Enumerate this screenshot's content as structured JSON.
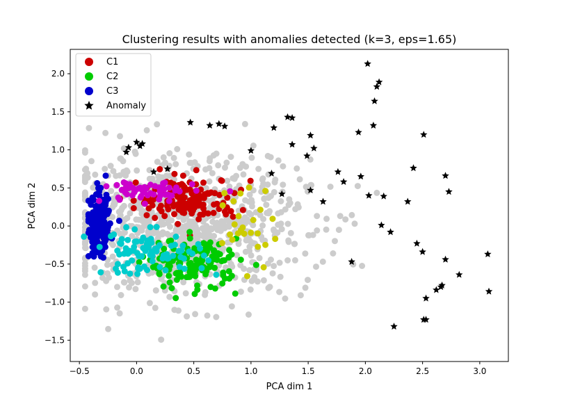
{
  "chart_data": {
    "type": "scatter",
    "title": "Clustering results with anomalies detected (k=3, eps=1.65)",
    "xlabel": "PCA dim 1",
    "ylabel": "PCA dim 2",
    "xlim": [
      -0.58,
      3.25
    ],
    "ylim": [
      -1.78,
      2.32
    ],
    "xticks": [
      -0.5,
      0.0,
      0.5,
      1.0,
      1.5,
      2.0,
      2.5,
      3.0
    ],
    "xtick_labels": [
      "−0.5",
      "0.0",
      "0.5",
      "1.0",
      "1.5",
      "2.0",
      "2.5",
      "3.0"
    ],
    "yticks": [
      -1.5,
      -1.0,
      -0.5,
      0.0,
      0.5,
      1.0,
      1.5,
      2.0
    ],
    "ytick_labels": [
      "−1.5",
      "−1.0",
      "−0.5",
      "0.0",
      "0.5",
      "1.0",
      "1.5",
      "2.0"
    ],
    "grid": false,
    "legend_position": "top-left",
    "legend": [
      {
        "label": "C1",
        "color": "#cc0000",
        "marker": "circle"
      },
      {
        "label": "C2",
        "color": "#00cc00",
        "marker": "circle"
      },
      {
        "label": "C3",
        "color": "#0000cc",
        "marker": "circle"
      },
      {
        "label": "Anomaly",
        "color": "#000000",
        "marker": "star"
      }
    ],
    "clusters": [
      {
        "name": "C1",
        "color": "#cc0000",
        "center": [
          0.45,
          0.35
        ],
        "spread": [
          0.22,
          0.14
        ],
        "n": 140
      },
      {
        "name": "C2",
        "color": "#00cc00",
        "center": [
          0.5,
          -0.5
        ],
        "spread": [
          0.2,
          0.16
        ],
        "n": 140
      },
      {
        "name": "C3",
        "color": "#0000cc",
        "center": [
          -0.33,
          0.0
        ],
        "spread": [
          0.05,
          0.2
        ],
        "n": 180
      },
      {
        "name": "magenta",
        "color": "#cc00cc",
        "center": [
          0.1,
          0.45
        ],
        "spread": [
          0.2,
          0.07
        ],
        "n": 60
      },
      {
        "name": "cyan",
        "color": "#00cccc",
        "center": [
          0.1,
          -0.35
        ],
        "spread": [
          0.25,
          0.14
        ],
        "n": 90
      },
      {
        "name": "yellow",
        "color": "#cccc00",
        "center": [
          0.95,
          0.0
        ],
        "spread": [
          0.12,
          0.3
        ],
        "n": 25
      }
    ],
    "background": {
      "color": "#cccccc",
      "center": [
        0.4,
        0.0
      ],
      "spread": [
        0.55,
        0.45
      ],
      "n": 900
    },
    "anomaly_color": "#000000",
    "anomalies": [
      [
        2.02,
        2.13
      ],
      [
        2.12,
        1.89
      ],
      [
        2.1,
        1.83
      ],
      [
        2.08,
        1.64
      ],
      [
        2.07,
        1.32
      ],
      [
        1.94,
        1.23
      ],
      [
        2.51,
        1.2
      ],
      [
        1.52,
        1.19
      ],
      [
        1.32,
        1.43
      ],
      [
        1.36,
        1.42
      ],
      [
        1.2,
        1.29
      ],
      [
        0.47,
        1.36
      ],
      [
        0.72,
        1.34
      ],
      [
        0.64,
        1.32
      ],
      [
        0.77,
        1.31
      ],
      [
        0.0,
        1.1
      ],
      [
        0.05,
        1.08
      ],
      [
        0.03,
        1.05
      ],
      [
        -0.07,
        1.03
      ],
      [
        -0.09,
        0.97
      ],
      [
        1.0,
        0.99
      ],
      [
        1.36,
        1.07
      ],
      [
        1.49,
        0.92
      ],
      [
        1.55,
        1.02
      ],
      [
        0.15,
        0.71
      ],
      [
        0.27,
        0.75
      ],
      [
        1.18,
        0.69
      ],
      [
        1.76,
        0.71
      ],
      [
        1.81,
        0.58
      ],
      [
        1.96,
        0.65
      ],
      [
        2.42,
        0.76
      ],
      [
        2.7,
        0.66
      ],
      [
        2.73,
        0.45
      ],
      [
        1.52,
        0.47
      ],
      [
        1.27,
        0.42
      ],
      [
        2.03,
        0.4
      ],
      [
        2.16,
        0.39
      ],
      [
        2.37,
        0.32
      ],
      [
        1.63,
        0.32
      ],
      [
        2.14,
        0.01
      ],
      [
        2.22,
        -0.08
      ],
      [
        2.45,
        -0.23
      ],
      [
        2.5,
        -0.34
      ],
      [
        2.7,
        -0.44
      ],
      [
        1.88,
        -0.47
      ],
      [
        2.82,
        -0.64
      ],
      [
        2.67,
        -0.78
      ],
      [
        2.66,
        -0.8
      ],
      [
        2.62,
        -0.84
      ],
      [
        2.53,
        -0.95
      ],
      [
        3.07,
        -0.37
      ],
      [
        3.08,
        -0.86
      ],
      [
        2.25,
        -1.32
      ],
      [
        2.51,
        -1.23
      ],
      [
        2.53,
        -1.23
      ]
    ]
  }
}
